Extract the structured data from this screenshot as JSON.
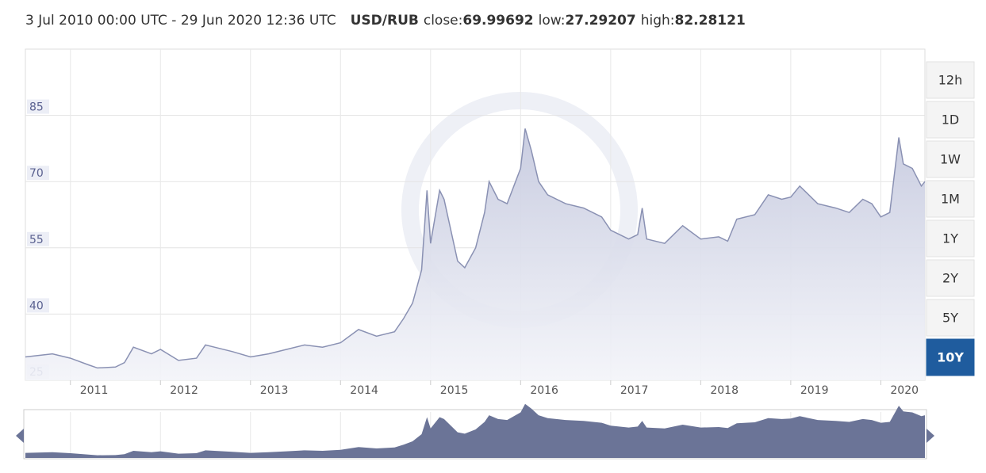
{
  "header": {
    "range": "3 Jul 2010 00:00 UTC - 29 Jun 2020 12:36 UTC",
    "pair": "USD/RUB",
    "stats": [
      {
        "label": "close:",
        "value": 69.99692
      },
      {
        "label": "low:",
        "value": 27.29207
      },
      {
        "label": "high:",
        "value": 82.28121
      }
    ]
  },
  "buttons": [
    "12h",
    "1D",
    "1W",
    "1M",
    "1Y",
    "2Y",
    "5Y",
    "10Y"
  ],
  "active": "10Y",
  "chart_data": {
    "type": "line",
    "color": "#8a91b3",
    "fill": "#c9cde0",
    "navigator_color": "#6b7497",
    "xlim": [
      2010.5,
      2020.49
    ],
    "xticks": [
      2011,
      2012,
      2013,
      2014,
      2015,
      2016,
      2017,
      2018,
      2019,
      2020
    ],
    "ylim": [
      25,
      100
    ],
    "yticks": [
      25,
      40,
      55,
      70,
      85
    ],
    "grid": true,
    "x": [
      2010.5,
      2010.8,
      2011.0,
      2011.2,
      2011.3,
      2011.5,
      2011.6,
      2011.7,
      2011.9,
      2012.0,
      2012.2,
      2012.4,
      2012.5,
      2012.6,
      2012.8,
      2013.0,
      2013.2,
      2013.4,
      2013.6,
      2013.8,
      2014.0,
      2014.2,
      2014.4,
      2014.6,
      2014.7,
      2014.8,
      2014.9,
      2014.96,
      2015.0,
      2015.1,
      2015.15,
      2015.3,
      2015.38,
      2015.5,
      2015.6,
      2015.65,
      2015.75,
      2015.85,
      2016.0,
      2016.05,
      2016.12,
      2016.2,
      2016.3,
      2016.5,
      2016.7,
      2016.9,
      2017.0,
      2017.2,
      2017.3,
      2017.35,
      2017.4,
      2017.6,
      2017.8,
      2018.0,
      2018.2,
      2018.3,
      2018.4,
      2018.6,
      2018.75,
      2018.9,
      2019.0,
      2019.1,
      2019.3,
      2019.5,
      2019.65,
      2019.8,
      2019.9,
      2020.0,
      2020.1,
      2020.2,
      2020.25,
      2020.35,
      2020.45,
      2020.49
    ],
    "series": [
      {
        "name": "USD/RUB",
        "values": [
          30.3,
          31,
          30,
          28.5,
          27.8,
          28,
          29,
          32.5,
          31,
          32,
          29.5,
          30,
          33,
          32.5,
          31.5,
          30.3,
          31,
          32,
          33,
          32.5,
          33.5,
          36.5,
          35,
          36,
          39,
          42.5,
          50,
          68,
          56,
          68,
          66,
          52,
          50.5,
          55,
          63,
          70,
          66,
          65,
          73,
          82,
          77,
          70,
          67,
          65,
          64,
          62,
          59,
          57,
          58,
          64,
          57,
          56,
          60,
          57,
          57.5,
          56.5,
          61.5,
          62.5,
          67,
          66,
          66.5,
          69,
          65,
          64,
          63,
          66,
          65,
          62,
          63,
          80,
          74,
          73,
          69,
          70
        ]
      }
    ]
  }
}
